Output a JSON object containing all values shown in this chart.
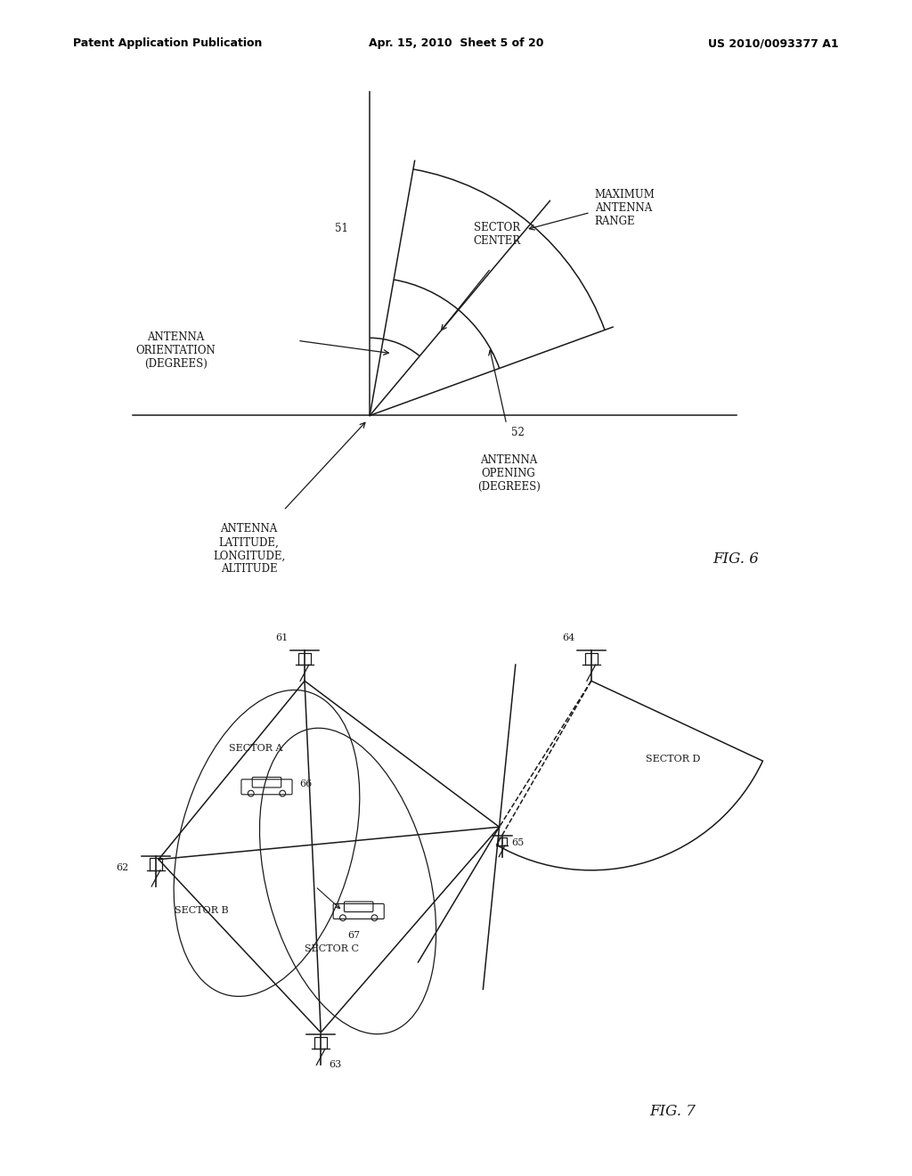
{
  "bg_color": "#ffffff",
  "text_color": "#000000",
  "header_left": "Patent Application Publication",
  "header_center": "Apr. 15, 2010  Sheet 5 of 20",
  "header_right": "US 2010/0093377 A1",
  "fig6_label": "FIG. 6",
  "fig7_label": "FIG. 7",
  "line_color": "#1a1a1a",
  "font_size_header": 9,
  "font_size_label": 8.5,
  "font_size_fig": 12
}
